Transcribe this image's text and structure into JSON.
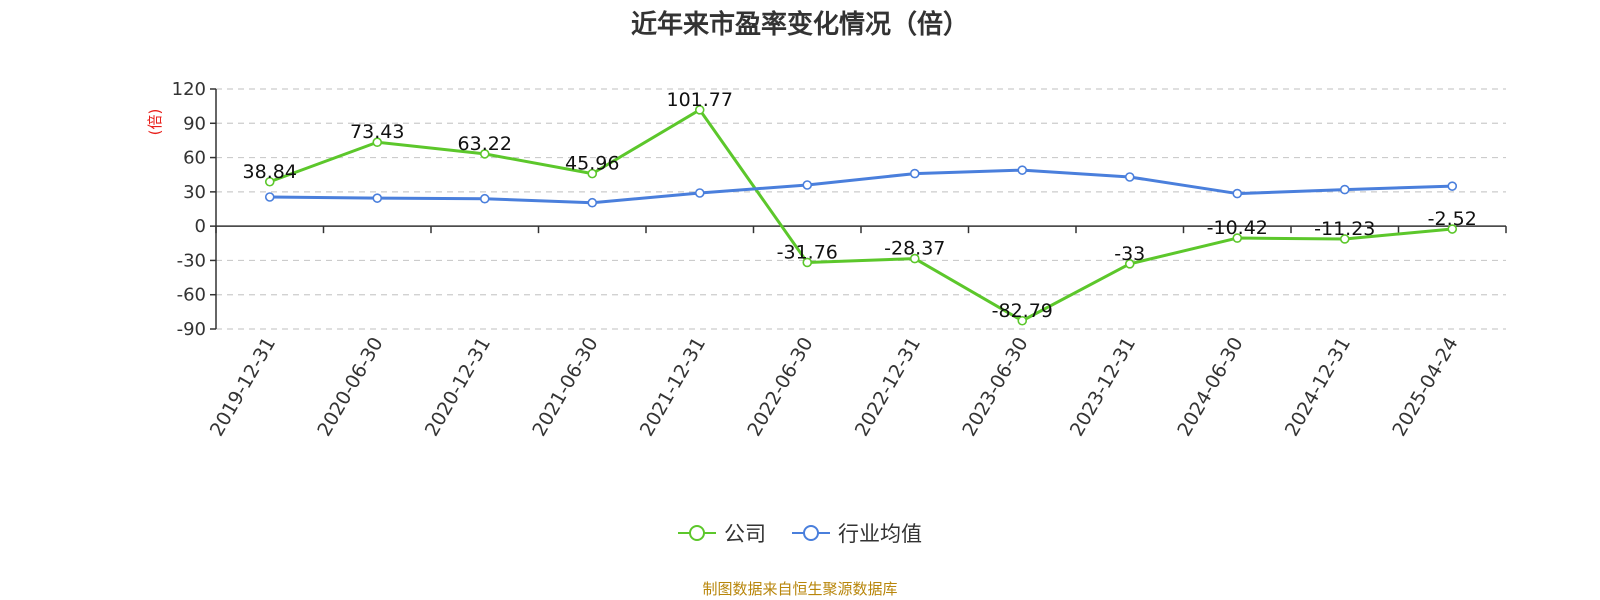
{
  "chart_data": {
    "type": "line",
    "title": "近年来市盈率变化情况（倍）",
    "ylabel": "(倍)",
    "xlabel": "",
    "categories": [
      "2019-12-31",
      "2020-06-30",
      "2020-12-31",
      "2021-06-30",
      "2021-12-31",
      "2022-06-30",
      "2022-12-31",
      "2023-06-30",
      "2023-12-31",
      "2024-06-30",
      "2024-12-31",
      "2025-04-24"
    ],
    "y_ticks": [
      "120",
      "90",
      "60",
      "30",
      "0",
      "-30",
      "-60",
      "-90"
    ],
    "ylim": [
      -90,
      120
    ],
    "grid": true,
    "legend_position": "bottom",
    "series": [
      {
        "name": "公司",
        "color": "#5cc72b",
        "values": [
          38.84,
          73.43,
          63.22,
          45.96,
          101.77,
          -31.76,
          -28.37,
          -82.79,
          -33,
          -10.42,
          -11.23,
          -2.52
        ],
        "labels": [
          "38.84",
          "73.43",
          "63.22",
          "45.96",
          "101.77",
          "-31.76",
          "-28.37",
          "-82.79",
          "-33",
          "-10.42",
          "-11.23",
          "-2.52"
        ]
      },
      {
        "name": "行业均值",
        "color": "#4a7fdc",
        "values": [
          25.5,
          24.5,
          24,
          20.5,
          29,
          36,
          46,
          49,
          43,
          28.5,
          32,
          35
        ]
      }
    ]
  },
  "ylabel_color": "#e8211c",
  "source": "制图数据来自恒生聚源数据库"
}
